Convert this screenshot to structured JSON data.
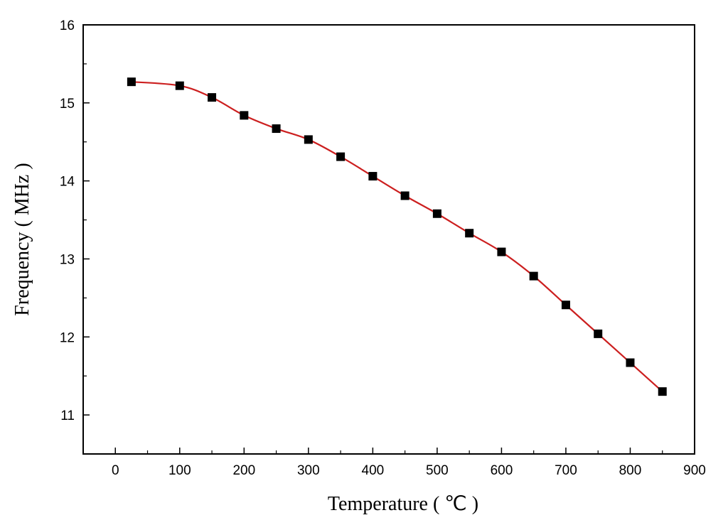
{
  "chart_data": {
    "type": "line",
    "title": "",
    "xlabel": "Temperature ( ℃ )",
    "ylabel": "Frequency ( MHz )",
    "xlim": [
      -50,
      900
    ],
    "ylim": [
      10.5,
      16
    ],
    "x_ticks": [
      0,
      100,
      200,
      300,
      400,
      500,
      600,
      700,
      800,
      900
    ],
    "y_ticks": [
      11,
      12,
      13,
      14,
      15,
      16
    ],
    "grid": false,
    "legend": "none",
    "series": [
      {
        "color": "#cc1f1f",
        "marker": "square",
        "marker_color": "#000000",
        "x": [
          25,
          100,
          150,
          200,
          250,
          300,
          350,
          400,
          450,
          500,
          550,
          600,
          650,
          700,
          750,
          800,
          850
        ],
        "y": [
          15.27,
          15.22,
          15.07,
          14.84,
          14.67,
          14.53,
          14.31,
          14.06,
          13.81,
          13.58,
          13.33,
          13.09,
          12.78,
          12.41,
          12.04,
          11.67,
          11.3
        ]
      }
    ]
  }
}
